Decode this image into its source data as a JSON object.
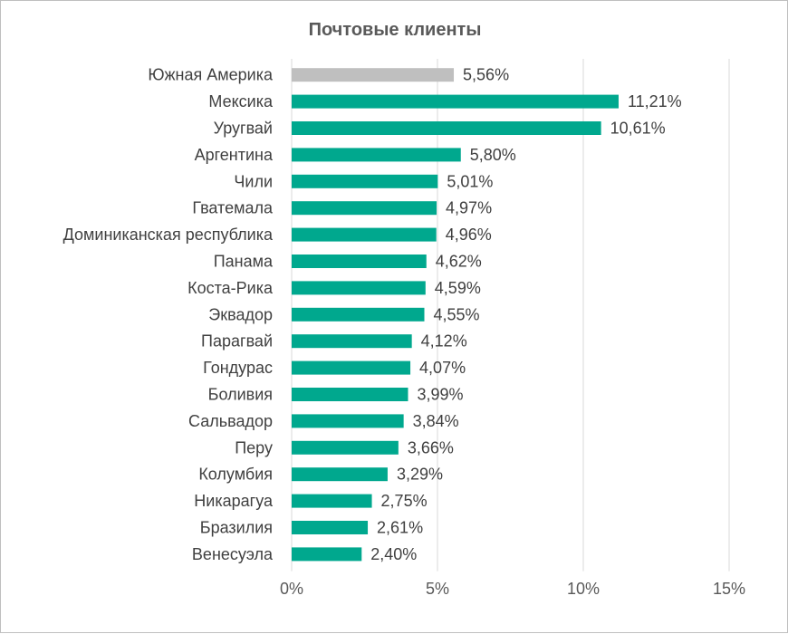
{
  "chart_data": {
    "type": "bar",
    "orientation": "horizontal",
    "title": "Почтовые клиенты",
    "xlabel": "",
    "ylabel": "",
    "xlim": [
      0,
      15
    ],
    "grid": true,
    "legend": "none",
    "ticks": [
      "0%",
      "5%",
      "10%",
      "15%"
    ],
    "tick_values": [
      0,
      5,
      10,
      15
    ],
    "categories": [
      "Южная Америка",
      "Мексика",
      "Уругвай",
      "Аргентина",
      "Чили",
      "Гватемала",
      "Доминиканская республика",
      "Панама",
      "Коста-Рика",
      "Эквадор",
      "Парагвай",
      "Гондурас",
      "Боливия",
      "Сальвадор",
      "Перу",
      "Колумбия",
      "Никарагуа",
      "Бразилия",
      "Венесуэла"
    ],
    "values": [
      5.56,
      11.21,
      10.61,
      5.8,
      5.01,
      4.97,
      4.96,
      4.62,
      4.59,
      4.55,
      4.12,
      4.07,
      3.99,
      3.84,
      3.66,
      3.29,
      2.75,
      2.61,
      2.4
    ],
    "value_labels": [
      "5,56%",
      "11,21%",
      "10,61%",
      "5,80%",
      "5,01%",
      "4,97%",
      "4,96%",
      "4,62%",
      "4,59%",
      "4,55%",
      "4,12%",
      "4,07%",
      "3,99%",
      "3,84%",
      "3,66%",
      "3,29%",
      "2,75%",
      "2,61%",
      "2,40%"
    ],
    "colors": {
      "highlight": "#bfbfbf",
      "bar": "#00a88e"
    },
    "highlight_index": 0
  }
}
